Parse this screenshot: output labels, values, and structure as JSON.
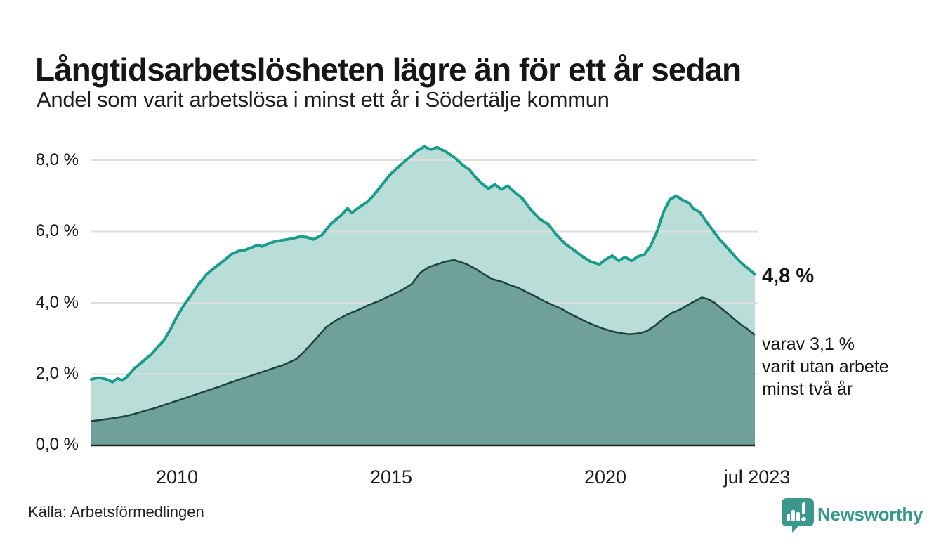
{
  "title": "Långtidsarbetslösheten lägre än för ett år sedan",
  "subtitle": "Andel som varit arbetslösa i minst ett år i Södertälje kommun",
  "source": "Källa: Arbetsförmedlingen",
  "branding": {
    "logo_text": "Newsworthy",
    "logo_icon": "bar-chart-speech-bubble",
    "logo_color": "#3a998c"
  },
  "annotations": {
    "end_value_label": "4,8 %",
    "note_lines": [
      "varav 3,1 %",
      "varit utan arbete",
      "minst två år"
    ]
  },
  "chart_data": {
    "type": "area",
    "title": "Långtidsarbetslösheten lägre än för ett år sedan",
    "subtitle": "Andel som varit arbetslösa i minst ett år i Södertälje kommun",
    "grid_color": "#dedede",
    "baseline_color": "#222222",
    "x_axis": {
      "range": [
        2008.0,
        2023.54
      ],
      "ticks": [
        {
          "label": "2010",
          "year": 2010
        },
        {
          "label": "2015",
          "year": 2015
        },
        {
          "label": "2020",
          "year": 2020
        },
        {
          "label": "jul 2023",
          "year": 2023.54
        }
      ]
    },
    "y_axis": {
      "unit": "%",
      "range": [
        0,
        8.5
      ],
      "values": [
        8,
        6,
        4,
        2,
        0
      ],
      "ticks": [
        "8,0 %",
        "6,0 %",
        "4,0 %",
        "2,0 %",
        "0,0 %"
      ]
    },
    "series": [
      {
        "name": "Andel arbetslösa minst ett år",
        "end_value": 4.8,
        "line_color": "#1a9c8c",
        "fill_color": "#b9ddd7",
        "line_width": 4,
        "points": [
          [
            2008.0,
            1.85
          ],
          [
            2008.17,
            1.9
          ],
          [
            2008.33,
            1.86
          ],
          [
            2008.5,
            1.78
          ],
          [
            2008.62,
            1.88
          ],
          [
            2008.72,
            1.82
          ],
          [
            2008.83,
            1.92
          ],
          [
            2009.0,
            2.15
          ],
          [
            2009.2,
            2.35
          ],
          [
            2009.4,
            2.55
          ],
          [
            2009.55,
            2.75
          ],
          [
            2009.7,
            2.95
          ],
          [
            2009.85,
            3.25
          ],
          [
            2010.0,
            3.6
          ],
          [
            2010.15,
            3.9
          ],
          [
            2010.3,
            4.15
          ],
          [
            2010.5,
            4.5
          ],
          [
            2010.7,
            4.8
          ],
          [
            2010.9,
            5.0
          ],
          [
            2011.1,
            5.18
          ],
          [
            2011.3,
            5.38
          ],
          [
            2011.45,
            5.45
          ],
          [
            2011.6,
            5.48
          ],
          [
            2011.75,
            5.55
          ],
          [
            2011.9,
            5.62
          ],
          [
            2012.0,
            5.58
          ],
          [
            2012.15,
            5.66
          ],
          [
            2012.3,
            5.72
          ],
          [
            2012.5,
            5.76
          ],
          [
            2012.7,
            5.8
          ],
          [
            2012.9,
            5.86
          ],
          [
            2013.05,
            5.84
          ],
          [
            2013.2,
            5.78
          ],
          [
            2013.4,
            5.9
          ],
          [
            2013.6,
            6.2
          ],
          [
            2013.85,
            6.45
          ],
          [
            2014.0,
            6.65
          ],
          [
            2014.1,
            6.52
          ],
          [
            2014.25,
            6.66
          ],
          [
            2014.45,
            6.82
          ],
          [
            2014.6,
            7.0
          ],
          [
            2014.8,
            7.3
          ],
          [
            2015.0,
            7.6
          ],
          [
            2015.2,
            7.82
          ],
          [
            2015.45,
            8.08
          ],
          [
            2015.65,
            8.28
          ],
          [
            2015.8,
            8.38
          ],
          [
            2015.95,
            8.3
          ],
          [
            2016.1,
            8.36
          ],
          [
            2016.3,
            8.24
          ],
          [
            2016.5,
            8.08
          ],
          [
            2016.7,
            7.86
          ],
          [
            2016.85,
            7.74
          ],
          [
            2017.0,
            7.52
          ],
          [
            2017.15,
            7.34
          ],
          [
            2017.3,
            7.2
          ],
          [
            2017.45,
            7.32
          ],
          [
            2017.6,
            7.18
          ],
          [
            2017.75,
            7.28
          ],
          [
            2017.9,
            7.12
          ],
          [
            2018.1,
            6.92
          ],
          [
            2018.3,
            6.6
          ],
          [
            2018.5,
            6.35
          ],
          [
            2018.7,
            6.2
          ],
          [
            2018.9,
            5.9
          ],
          [
            2019.1,
            5.65
          ],
          [
            2019.3,
            5.48
          ],
          [
            2019.5,
            5.3
          ],
          [
            2019.7,
            5.15
          ],
          [
            2019.9,
            5.08
          ],
          [
            2020.05,
            5.22
          ],
          [
            2020.2,
            5.32
          ],
          [
            2020.35,
            5.18
          ],
          [
            2020.5,
            5.28
          ],
          [
            2020.65,
            5.18
          ],
          [
            2020.8,
            5.3
          ],
          [
            2020.95,
            5.35
          ],
          [
            2021.1,
            5.6
          ],
          [
            2021.25,
            6.0
          ],
          [
            2021.4,
            6.55
          ],
          [
            2021.55,
            6.9
          ],
          [
            2021.7,
            7.0
          ],
          [
            2021.85,
            6.88
          ],
          [
            2022.0,
            6.8
          ],
          [
            2022.1,
            6.64
          ],
          [
            2022.25,
            6.54
          ],
          [
            2022.4,
            6.28
          ],
          [
            2022.55,
            6.04
          ],
          [
            2022.7,
            5.8
          ],
          [
            2022.85,
            5.6
          ],
          [
            2023.0,
            5.4
          ],
          [
            2023.15,
            5.2
          ],
          [
            2023.3,
            5.04
          ],
          [
            2023.42,
            4.92
          ],
          [
            2023.54,
            4.8
          ]
        ]
      },
      {
        "name": "varav utan arbete minst två år",
        "end_value": 3.1,
        "line_color": "#1c433e",
        "fill_color": "#70a09a",
        "line_width": 2.5,
        "points": [
          [
            2008.0,
            0.68
          ],
          [
            2008.25,
            0.72
          ],
          [
            2008.5,
            0.76
          ],
          [
            2008.75,
            0.81
          ],
          [
            2009.0,
            0.88
          ],
          [
            2009.25,
            0.97
          ],
          [
            2009.5,
            1.05
          ],
          [
            2009.75,
            1.15
          ],
          [
            2010.0,
            1.25
          ],
          [
            2010.25,
            1.35
          ],
          [
            2010.5,
            1.45
          ],
          [
            2010.75,
            1.55
          ],
          [
            2011.0,
            1.65
          ],
          [
            2011.25,
            1.76
          ],
          [
            2011.5,
            1.86
          ],
          [
            2011.75,
            1.96
          ],
          [
            2012.0,
            2.06
          ],
          [
            2012.25,
            2.16
          ],
          [
            2012.5,
            2.26
          ],
          [
            2012.65,
            2.34
          ],
          [
            2012.8,
            2.42
          ],
          [
            2013.0,
            2.65
          ],
          [
            2013.25,
            2.98
          ],
          [
            2013.5,
            3.32
          ],
          [
            2013.75,
            3.52
          ],
          [
            2014.0,
            3.68
          ],
          [
            2014.25,
            3.8
          ],
          [
            2014.5,
            3.94
          ],
          [
            2014.75,
            4.06
          ],
          [
            2015.0,
            4.2
          ],
          [
            2015.25,
            4.34
          ],
          [
            2015.5,
            4.52
          ],
          [
            2015.7,
            4.84
          ],
          [
            2015.9,
            5.0
          ],
          [
            2016.1,
            5.08
          ],
          [
            2016.3,
            5.16
          ],
          [
            2016.5,
            5.2
          ],
          [
            2016.65,
            5.14
          ],
          [
            2016.8,
            5.08
          ],
          [
            2017.0,
            4.95
          ],
          [
            2017.2,
            4.8
          ],
          [
            2017.4,
            4.66
          ],
          [
            2017.6,
            4.6
          ],
          [
            2017.8,
            4.5
          ],
          [
            2018.0,
            4.42
          ],
          [
            2018.2,
            4.3
          ],
          [
            2018.4,
            4.18
          ],
          [
            2018.6,
            4.05
          ],
          [
            2018.8,
            3.94
          ],
          [
            2019.0,
            3.84
          ],
          [
            2019.2,
            3.7
          ],
          [
            2019.4,
            3.58
          ],
          [
            2019.6,
            3.46
          ],
          [
            2019.8,
            3.36
          ],
          [
            2020.0,
            3.27
          ],
          [
            2020.2,
            3.2
          ],
          [
            2020.4,
            3.15
          ],
          [
            2020.6,
            3.12
          ],
          [
            2020.8,
            3.14
          ],
          [
            2021.0,
            3.2
          ],
          [
            2021.2,
            3.36
          ],
          [
            2021.4,
            3.56
          ],
          [
            2021.6,
            3.72
          ],
          [
            2021.8,
            3.82
          ],
          [
            2022.0,
            3.96
          ],
          [
            2022.15,
            4.06
          ],
          [
            2022.3,
            4.15
          ],
          [
            2022.45,
            4.1
          ],
          [
            2022.6,
            4.0
          ],
          [
            2022.8,
            3.8
          ],
          [
            2023.0,
            3.6
          ],
          [
            2023.2,
            3.4
          ],
          [
            2023.35,
            3.28
          ],
          [
            2023.45,
            3.18
          ],
          [
            2023.54,
            3.1
          ]
        ]
      }
    ]
  }
}
